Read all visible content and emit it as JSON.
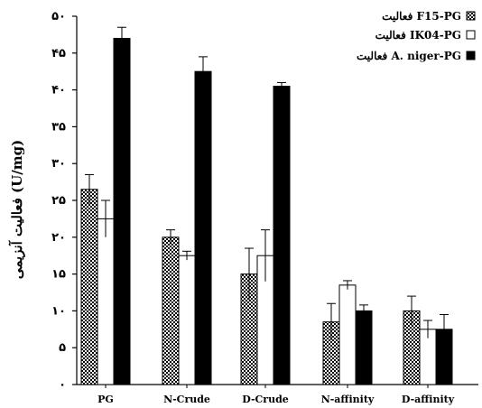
{
  "chart_data": {
    "type": "bar",
    "title": "",
    "xlabel": "",
    "ylabel": "فعالیت آنزیمی (U/mg)",
    "ylim": [
      0,
      50
    ],
    "yticks": [
      0,
      5,
      10,
      15,
      20,
      25,
      30,
      35,
      40,
      45,
      50
    ],
    "ytick_labels": [
      "۰",
      "۵",
      "۱۰",
      "۱۵",
      "۲۰",
      "۲۵",
      "۳۰",
      "۳۵",
      "۴۰",
      "۴۵",
      "۵۰"
    ],
    "categories": [
      "PG",
      "N-Crude",
      "D-Crude",
      "N-affinity",
      "D-affinity"
    ],
    "legend_position": "top-right",
    "grid": false,
    "series": [
      {
        "name": "فعالیت F15-PG",
        "fill": "crosshatch",
        "values": [
          26.5,
          20,
          15,
          8.5,
          10
        ],
        "errors": [
          2,
          1,
          3.5,
          2.5,
          2
        ]
      },
      {
        "name": "فعالیت IK04-PG",
        "fill": "white",
        "values": [
          22.5,
          17.5,
          17.5,
          13.5,
          7.5
        ],
        "errors": [
          2.5,
          0.6,
          3.5,
          0.6,
          1.2
        ]
      },
      {
        "name": "فعالیت A. niger-PG",
        "fill": "black",
        "values": [
          47,
          42.5,
          40.5,
          10,
          7.5
        ],
        "errors": [
          1.5,
          2,
          0.5,
          0.8,
          2
        ]
      }
    ]
  }
}
